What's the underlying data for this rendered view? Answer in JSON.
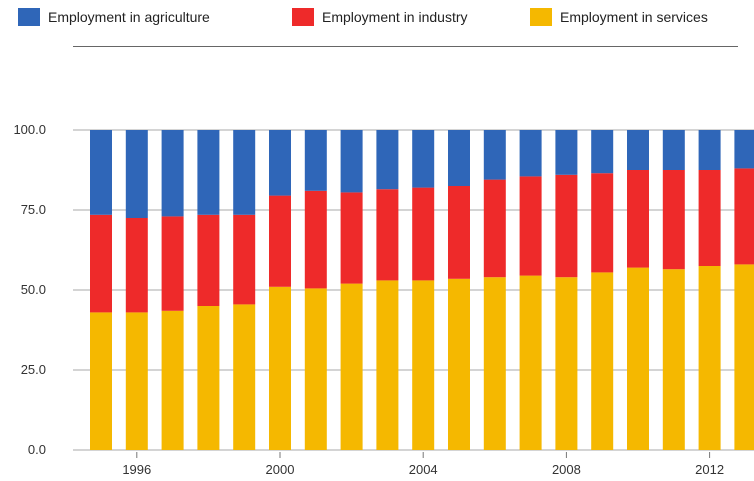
{
  "chart_data": {
    "type": "bar",
    "stacked": true,
    "title": "",
    "xlabel": "",
    "ylabel": "",
    "ylim": [
      0,
      100
    ],
    "y_ticks": [
      "0.0",
      "25.0",
      "50.0",
      "75.0",
      "100.0"
    ],
    "x_tick_labels": [
      "1996",
      "2000",
      "2004",
      "2008",
      "2012"
    ],
    "categories": [
      "1995",
      "1996",
      "1997",
      "1998",
      "1999",
      "2000",
      "2001",
      "2002",
      "2003",
      "2004",
      "2005",
      "2006",
      "2007",
      "2008",
      "2009",
      "2010",
      "2011",
      "2012",
      "2013"
    ],
    "series": [
      {
        "name": "Employment in services",
        "color": "#f5b800",
        "values": [
          43,
          43,
          43.5,
          45,
          45.5,
          51,
          50.5,
          52,
          53,
          53,
          53.5,
          54,
          54.5,
          54,
          55.5,
          57,
          56.5,
          57.5,
          58
        ]
      },
      {
        "name": "Employment in industry",
        "color": "#ee2a2a",
        "values": [
          30.5,
          29.5,
          29.5,
          28.5,
          28,
          28.5,
          30.5,
          28.5,
          28.5,
          29,
          29,
          30.5,
          31,
          32,
          31,
          30.5,
          31,
          30,
          30
        ]
      },
      {
        "name": "Employment in agriculture",
        "color": "#2f66b8",
        "values": [
          26.5,
          27.5,
          27,
          26.5,
          26.5,
          20.5,
          19,
          19.5,
          18.5,
          18,
          17.5,
          15.5,
          14.5,
          14,
          13.5,
          12.5,
          12.5,
          12.5,
          12
        ]
      }
    ],
    "legend": {
      "placement": "top",
      "order": [
        "Employment in agriculture",
        "Employment in industry",
        "Employment in services"
      ]
    },
    "grid": true
  }
}
